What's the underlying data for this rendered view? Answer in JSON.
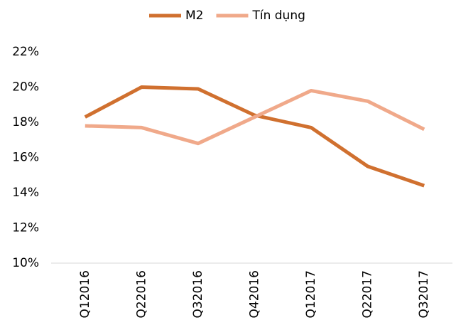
{
  "chart_data": {
    "type": "line",
    "categories": [
      "Q12016",
      "Q22016",
      "Q32016",
      "Q42016",
      "Q12017",
      "Q22017",
      "Q32017"
    ],
    "series": [
      {
        "name": "M2",
        "color": "#d0702f",
        "values": [
          18.3,
          20.0,
          19.9,
          18.4,
          17.7,
          15.5,
          14.4
        ]
      },
      {
        "name": "Tín dụng",
        "color": "#f0a98a",
        "values": [
          17.8,
          17.7,
          16.8,
          18.3,
          19.8,
          19.2,
          17.6
        ]
      }
    ],
    "ylim": [
      10,
      22
    ],
    "yticks": [
      {
        "value": 10,
        "label": "10%"
      },
      {
        "value": 12,
        "label": "12%"
      },
      {
        "value": 14,
        "label": "14%"
      },
      {
        "value": 16,
        "label": "16%"
      },
      {
        "value": 18,
        "label": "18%"
      },
      {
        "value": 20,
        "label": "20%"
      },
      {
        "value": 22,
        "label": "22%"
      }
    ],
    "grid": false,
    "legend": "top"
  }
}
